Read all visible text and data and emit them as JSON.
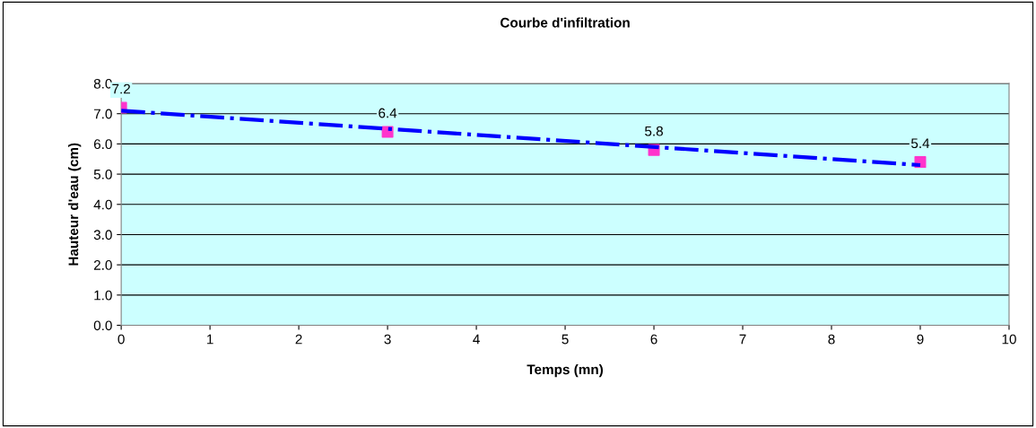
{
  "chart_data": {
    "type": "scatter",
    "title": "Courbe d'infiltration",
    "xlabel": "Temps (mn)",
    "ylabel": "Hauteur d'eau (cm)",
    "series": [
      {
        "color": "#ff33cc",
        "marker": "square",
        "x": [
          0,
          3,
          6,
          9
        ],
        "values": [
          7.2,
          6.4,
          5.8,
          5.4
        ],
        "value_labels": [
          "7.2",
          "6.4",
          "5.8",
          "5.4"
        ]
      },
      {
        "type": "line",
        "color": "#0000ff",
        "line_style": "dashdot",
        "marker": "none",
        "x": [
          0,
          9
        ],
        "values": [
          7.1,
          5.3
        ]
      }
    ],
    "xlim": [
      0,
      10
    ],
    "xticks": [
      0,
      1,
      2,
      3,
      4,
      5,
      6,
      7,
      8,
      9,
      10
    ],
    "ylim": [
      0,
      8
    ],
    "yticks": [
      {
        "value": 0,
        "label": "0.0"
      },
      {
        "value": 1,
        "label": "1.0"
      },
      {
        "value": 2,
        "label": "2.0"
      },
      {
        "value": 3,
        "label": "3.0"
      },
      {
        "value": 4,
        "label": "4.0"
      },
      {
        "value": 5,
        "label": "5.0"
      },
      {
        "value": 6,
        "label": "6.0"
      },
      {
        "value": 7,
        "label": "7.0"
      },
      {
        "value": 8,
        "label": "8.0"
      }
    ],
    "grid": "y",
    "legend": false
  }
}
